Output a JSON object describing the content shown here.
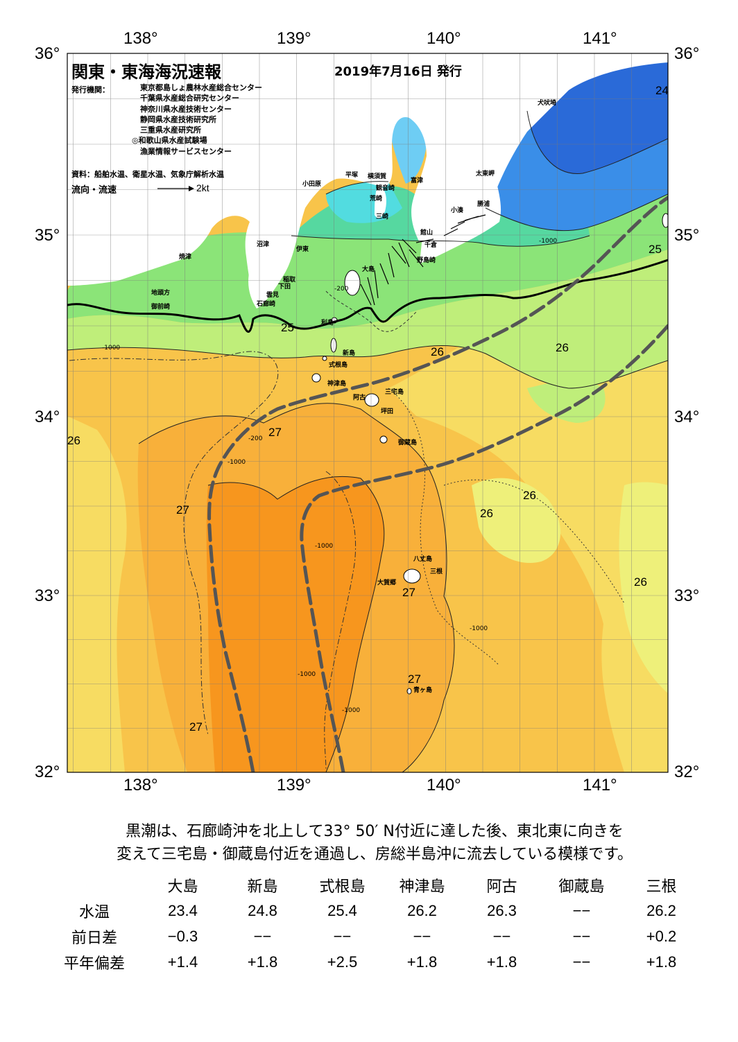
{
  "header": {
    "title": "関東・東海海況速報",
    "date": "2019年7月16日 発行"
  },
  "publishers": {
    "label": "発行機関：",
    "list": [
      "東京都島しょ農林水産総合センター",
      "千葉県水産総合研究センター",
      "神奈川県水産技術センター",
      "静岡県水産技術研究所",
      "三重県水産研究所",
      "◎和歌山県水産試験場",
      "漁業情報サービスセンター"
    ]
  },
  "source": "資料：船舶水温、衛星水温、気象庁解析水温",
  "flow_legend": {
    "label": "流向・流速",
    "unit": "2kt"
  },
  "axes": {
    "lon_labels": [
      "138°",
      "139°",
      "140°",
      "141°"
    ],
    "lat_labels": [
      "36°",
      "35°",
      "34°",
      "33°",
      "32°"
    ]
  },
  "places": {
    "inubozaki": "犬吠埼",
    "taitomisaki": "太東岬",
    "katsuura": "勝浦",
    "kominato": "小湊",
    "odawara": "小田原",
    "hiratsuka": "平塚",
    "yokosuka": "横須賀",
    "kannonzaki": "観音崎",
    "futtsu": "富津",
    "arasaki": "荒崎",
    "misaki": "三崎",
    "tateyama": "館山",
    "chikura": "千倉",
    "nojimazaki": "野島崎",
    "numazu": "沼津",
    "ito": "伊東",
    "yaizu": "焼津",
    "inatori": "稲取",
    "shimoda": "下田",
    "mera": "雲見",
    "irozaki": "石廊崎",
    "jitohoo": "地頭方",
    "omaezaki": "御前崎",
    "oshima": "大島",
    "toshima": "利島",
    "niijima": "新島",
    "shikinejima": "式根島",
    "kozushima": "神津島",
    "miyakejima": "三宅島",
    "ako": "阿古",
    "tsubota": "坪田",
    "mikurajima": "御蔵島",
    "hachijojima": "八丈島",
    "mitsune": "三根",
    "okago": "大賀郷",
    "aogashima": "青ヶ島"
  },
  "contour_labels": {
    "t24": "24",
    "t25": "25",
    "t26": "26",
    "t27": "27",
    "d200": "-200",
    "d1000": "-1000"
  },
  "colors": {
    "warm_dark": "#f7961e",
    "warm_mid": "#f8b03a",
    "warm": "#f8c44a",
    "warm_light": "#f7dc62",
    "yellow": "#eef07a",
    "green_light": "#bfee7a",
    "green": "#8be478",
    "teal": "#56d8a0",
    "cyan": "#52dce0",
    "lightblue": "#6ecdf4",
    "blue": "#3a8ee8",
    "deepblue": "#2a6ad8",
    "purple": "#7a2aa8",
    "kuroshio_line": "#555555"
  },
  "summary": {
    "line1": "黒潮は、石廊崎沖を北上して33° 50′ N付近に達した後、東北東に向きを",
    "line2": "変えて三宅島・御蔵島付近を通過し、房総半島沖に流去している模様です。"
  },
  "observations": {
    "stations": [
      "大島",
      "新島",
      "式根島",
      "神津島",
      "阿古",
      "御蔵島",
      "三根"
    ],
    "rows": [
      {
        "label": "水温",
        "values": [
          "23.4",
          "24.8",
          "25.4",
          "26.2",
          "26.3",
          "−−",
          "26.2"
        ]
      },
      {
        "label": "前日差",
        "values": [
          "−0.3",
          "−−",
          "−−",
          "−−",
          "−−",
          "−−",
          "+0.2"
        ]
      },
      {
        "label": "平年偏差",
        "values": [
          "+1.4",
          "+1.8",
          "+2.5",
          "+1.8",
          "+1.8",
          "−−",
          "+1.8"
        ]
      }
    ]
  }
}
